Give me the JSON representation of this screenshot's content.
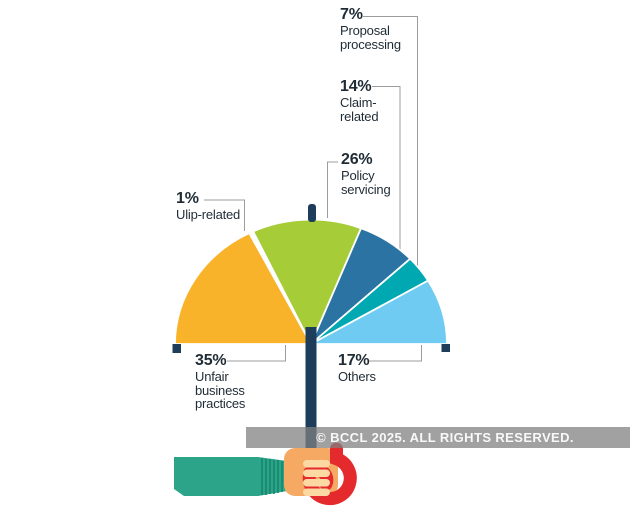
{
  "chart_data": {
    "type": "pie",
    "variant": "semicircle-umbrella",
    "title": "",
    "unit": "%",
    "total": 100,
    "orientation": "half-circle spanning 180 degrees, slices ordered left to right",
    "slices": [
      {
        "label": "Unfair business practices",
        "value": 35,
        "color": "#f9b32b"
      },
      {
        "label": "Ulip-related",
        "value": 1,
        "color": "#ffffff"
      },
      {
        "label": "Policy servicing",
        "value": 26,
        "color": "#a6cc38"
      },
      {
        "label": "Claim-related",
        "value": 14,
        "color": "#2a73a3"
      },
      {
        "label": "Proposal processing",
        "value": 7,
        "color": "#00a8b2"
      },
      {
        "label": "Others",
        "value": 17,
        "color": "#6fcbf1"
      }
    ],
    "legend_position": "callout-labels-around-chart"
  },
  "labels": {
    "proposal": {
      "pct": "7%",
      "name": "Proposal\nprocessing"
    },
    "claim": {
      "pct": "14%",
      "name": "Claim-\nrelated"
    },
    "policy": {
      "pct": "26%",
      "name": "Policy\nservicing"
    },
    "ulip": {
      "pct": "1%",
      "name": "Ulip-related"
    },
    "unfair": {
      "pct": "35%",
      "name": "Unfair\nbusiness\npractices"
    },
    "others": {
      "pct": "17%",
      "name": "Others"
    }
  },
  "watermark": {
    "text": "© BCCL 2025. ALL RIGHTS RESERVED."
  },
  "colors": {
    "navy_pole": "#1e3d5b",
    "connector_grey": "#9c9c9c",
    "label_text": "#1f2b35",
    "sleeve_green": "#2ba489",
    "cuff_ridge": "#15866d",
    "skin": "#f6a963",
    "skin_light": "#fcd8a3",
    "handle_red": "#e42a2c",
    "watermark_bg_grey": "#808080",
    "watermark_text": "#f8f8f8",
    "background": "#ffffff"
  }
}
